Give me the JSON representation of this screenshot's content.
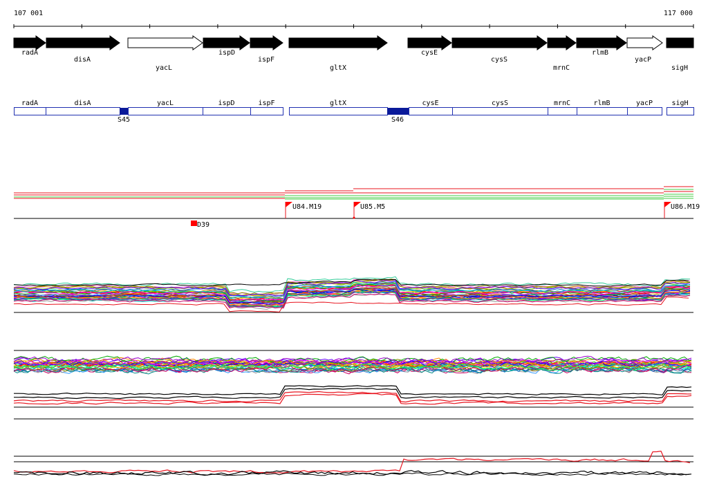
{
  "ruler": {
    "start_label": "107 001",
    "end_label": "117 000"
  },
  "genes": [
    {
      "name": "radA",
      "strand": "+",
      "filled": true
    },
    {
      "name": "disA",
      "strand": "+",
      "filled": true
    },
    {
      "name": "yacL",
      "strand": "+",
      "filled": false
    },
    {
      "name": "ispD",
      "strand": "+",
      "filled": true
    },
    {
      "name": "ispF",
      "strand": "+",
      "filled": true
    },
    {
      "name": "gltX",
      "strand": "+",
      "filled": true
    },
    {
      "name": "cysE",
      "strand": "+",
      "filled": true
    },
    {
      "name": "cysS",
      "strand": "+",
      "filled": true
    },
    {
      "name": "mrnC",
      "strand": "+",
      "filled": true
    },
    {
      "name": "rlmB",
      "strand": "+",
      "filled": true
    },
    {
      "name": "yacP",
      "strand": "+",
      "filled": false
    },
    {
      "name": "sigH",
      "strand": "+",
      "filled": true
    }
  ],
  "segments": [
    {
      "name": "S45"
    },
    {
      "name": "S46"
    }
  ],
  "flags": [
    {
      "name": "U84.M19"
    },
    {
      "name": "U85.M5"
    },
    {
      "name": "U86.M19"
    }
  ],
  "downstream_marker": {
    "name": "D39"
  },
  "colors": {
    "gene_fill": "#000000",
    "box_outline": "#1f2fb0",
    "segment_fill": "#0a1a9a",
    "flag": "#ff0000",
    "red_line": "#e8141e",
    "green_line": "#44cc44",
    "black_line": "#000000"
  }
}
